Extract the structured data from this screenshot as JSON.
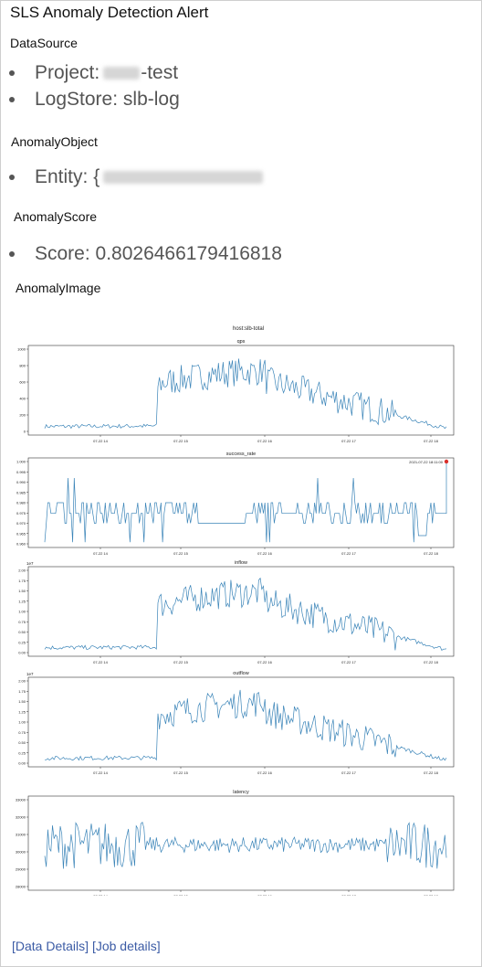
{
  "title": "SLS Anomaly Detection Alert",
  "datasource": {
    "heading": "DataSource",
    "project_prefix": "Project:",
    "project_suffix": "-test",
    "logstore": "LogStore: slb-log"
  },
  "anomaly_object": {
    "heading": "AnomalyObject",
    "entity_prefix": "Entity: {"
  },
  "anomaly_score": {
    "heading": "AnomalyScore",
    "score": "Score: 0.8026466179416818"
  },
  "anomaly_image": {
    "heading": "AnomalyImage",
    "figure_title": "host:slb-total"
  },
  "links": {
    "data_details": "Data Details",
    "job_details": "Job details"
  },
  "chart_data": [
    {
      "type": "line",
      "title": "qps",
      "x_ticks": [
        "07-22 14",
        "07-22 15",
        "07-22 16",
        "07-22 17",
        "07-22 18"
      ],
      "y_ticks": [
        "0",
        "200",
        "400",
        "600",
        "800",
        "1000"
      ],
      "ylim": [
        0,
        1000
      ],
      "color": "#3a84b8"
    },
    {
      "type": "line",
      "title": "success_rate",
      "x_ticks": [
        "07-22 14",
        "07-22 15",
        "07-22 16",
        "07-22 17",
        "07-22 18"
      ],
      "y_ticks": [
        "0.960",
        "0.965",
        "0.970",
        "0.975",
        "0.980",
        "0.985",
        "0.990",
        "0.995",
        "1.000"
      ],
      "ylim": [
        0.96,
        1.0
      ],
      "annotation": "2021-07-22 18:11:00",
      "anomaly_color": "#d9302c",
      "color": "#3a84b8"
    },
    {
      "type": "line",
      "title": "inflow",
      "y_scale_label": "1e7",
      "x_ticks": [
        "07-22 14",
        "07-22 15",
        "07-22 16",
        "07-22 17",
        "07-22 18"
      ],
      "y_ticks": [
        "0.00",
        "0.25",
        "0.50",
        "0.75",
        "1.00",
        "1.25",
        "1.50",
        "1.75",
        "2.00"
      ],
      "ylim": [
        0,
        2.0
      ],
      "color": "#3a84b8"
    },
    {
      "type": "line",
      "title": "outflow",
      "y_scale_label": "1e7",
      "x_ticks": [
        "07-22 14",
        "07-22 15",
        "07-22 16",
        "07-22 17",
        "07-22 18"
      ],
      "y_ticks": [
        "0.00",
        "0.25",
        "0.50",
        "0.75",
        "1.00",
        "1.25",
        "1.50",
        "1.75",
        "2.00"
      ],
      "ylim": [
        0,
        2.0
      ],
      "color": "#3a84b8"
    },
    {
      "type": "line",
      "title": "latency",
      "x_ticks": [
        "07-22 14",
        "07-22 15",
        "07-22 16",
        "07-22 17",
        "07-22 18"
      ],
      "y_ticks": [
        "28000",
        "29000",
        "30000",
        "31000",
        "32000",
        "33000"
      ],
      "ylim": [
        27500,
        33000
      ],
      "color": "#3a84b8"
    }
  ]
}
